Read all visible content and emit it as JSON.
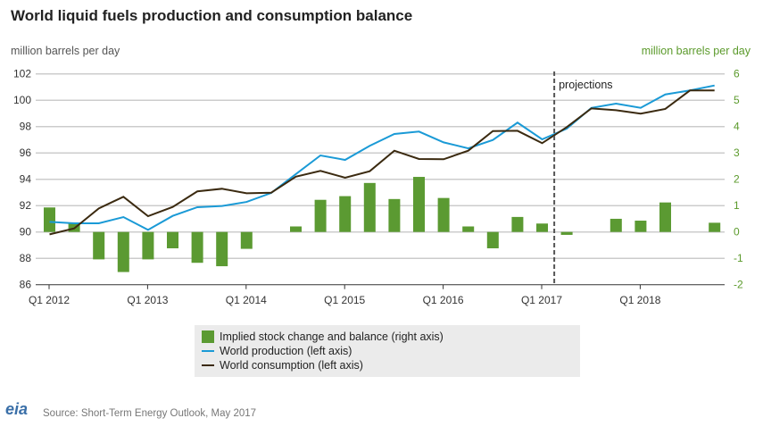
{
  "chart_data": {
    "type": "bar+line",
    "title": "World liquid fuels production and consumption balance",
    "ylabel_left": "million barrels per day",
    "ylabel_right": "million barrels per day",
    "ylim_left": [
      86,
      102
    ],
    "ylim_right": [
      -2,
      6
    ],
    "yticks_left": [
      "86",
      "88",
      "90",
      "92",
      "94",
      "96",
      "98",
      "100",
      "102"
    ],
    "yticks_right": [
      "-2",
      "-1",
      "0",
      "1",
      "2",
      "3",
      "4",
      "5",
      "6"
    ],
    "xtick_labels": [
      "Q1 2012",
      "Q1 2013",
      "Q1 2014",
      "Q1 2015",
      "Q1 2016",
      "Q1 2017",
      "Q1 2018"
    ],
    "quarters": [
      "Q1 2012",
      "Q2 2012",
      "Q3 2012",
      "Q4 2012",
      "Q1 2013",
      "Q2 2013",
      "Q3 2013",
      "Q4 2013",
      "Q1 2014",
      "Q2 2014",
      "Q3 2014",
      "Q4 2014",
      "Q1 2015",
      "Q2 2015",
      "Q3 2015",
      "Q4 2015",
      "Q1 2016",
      "Q2 2016",
      "Q3 2016",
      "Q4 2016",
      "Q1 2017",
      "Q2 2017",
      "Q3 2017",
      "Q4 2017",
      "Q1 2018",
      "Q2 2018",
      "Q3 2018",
      "Q4 2018"
    ],
    "grid": true,
    "projection_label": "projections",
    "projection_start": "Q2 2017",
    "series": [
      {
        "name": "Implied stock change and balance (right axis)",
        "type": "bar",
        "axis": "right",
        "color": "#5b9a32",
        "values": [
          0.93,
          0.35,
          -1.04,
          -1.52,
          -1.04,
          -0.62,
          -1.17,
          -1.3,
          -0.64,
          0,
          0.21,
          1.22,
          1.36,
          1.86,
          1.25,
          2.09,
          1.29,
          0.21,
          -0.62,
          0.57,
          0.32,
          -0.11,
          0,
          0.5,
          0.43,
          1.12,
          0,
          0.35
        ]
      },
      {
        "name": "World production (left axis)",
        "type": "line",
        "axis": "left",
        "color": "#1a9ad6",
        "values": [
          90.77,
          90.66,
          90.66,
          91.13,
          90.16,
          91.22,
          91.88,
          91.97,
          92.28,
          92.96,
          94.39,
          95.81,
          95.47,
          96.54,
          97.44,
          97.62,
          96.8,
          96.35,
          96.98,
          98.3,
          97.03,
          97.84,
          99.42,
          99.74,
          99.42,
          100.44,
          100.74,
          101.12
        ]
      },
      {
        "name": "World consumption (left axis)",
        "type": "line",
        "axis": "left",
        "color": "#3b2a10",
        "values": [
          89.82,
          90.27,
          91.79,
          92.67,
          91.2,
          91.9,
          93.08,
          93.28,
          92.94,
          92.98,
          94.2,
          94.64,
          94.12,
          94.61,
          96.17,
          95.54,
          95.52,
          96.17,
          97.66,
          97.68,
          96.74,
          97.96,
          99.38,
          99.24,
          98.98,
          99.34,
          100.74,
          100.74
        ]
      }
    ]
  },
  "source": "Source: Short-Term Energy Outlook, May 2017",
  "logo_text": "eia"
}
